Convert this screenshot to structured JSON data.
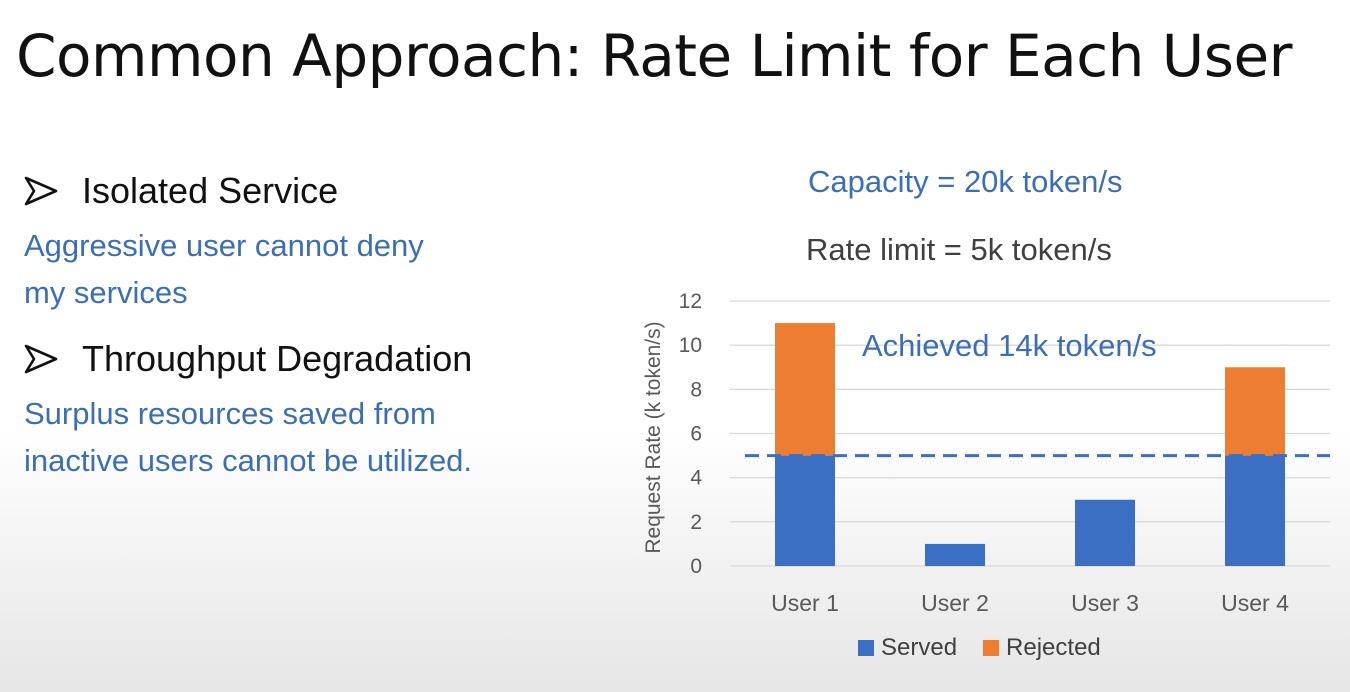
{
  "slide": {
    "title": "Common Approach: Rate Limit for Each User",
    "bullets": [
      {
        "heading": "Isolated Service",
        "lines": [
          "Aggressive user cannot deny",
          "my services"
        ]
      },
      {
        "heading": "Throughput Degradation",
        "lines": [
          "Surplus resources saved from",
          "inactive users cannot be utilized."
        ]
      }
    ]
  },
  "colors": {
    "served": "#3b6fc4",
    "rejected": "#ed7d31",
    "note_blue": "#3a6fb7",
    "limit_line": "#3b6fc4"
  },
  "chart_data": {
    "type": "bar",
    "stacked": true,
    "categories": [
      "User 1",
      "User 2",
      "User 3",
      "User 4"
    ],
    "series": [
      {
        "name": "Served",
        "values": [
          5,
          1,
          3,
          5
        ]
      },
      {
        "name": "Rejected",
        "values": [
          6,
          0,
          0,
          4
        ]
      }
    ],
    "ylabel": "Request Rate (k token/s)",
    "ylim": [
      0,
      12
    ],
    "yticks": [
      0,
      2,
      4,
      6,
      8,
      10,
      12
    ],
    "grid": true,
    "legend": "bottom",
    "rate_limit_line": 5,
    "annotations": {
      "capacity": "Capacity = 20k token/s",
      "rate_limit": "Rate limit = 5k token/s",
      "achieved": "Achieved 14k token/s"
    }
  }
}
